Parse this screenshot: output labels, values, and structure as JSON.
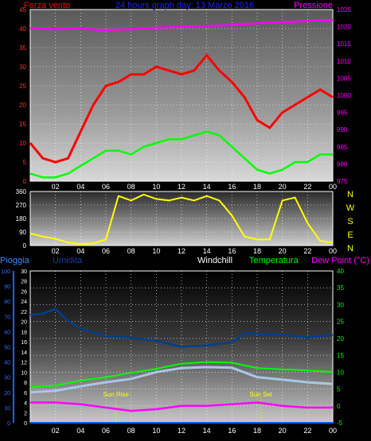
{
  "chart_data": [
    {
      "type": "line",
      "title": "24 hours graph day: 13 Marzo 2016",
      "left_label": "Forza vento",
      "right_label": "Pressione",
      "x_ticks": [
        "02",
        "04",
        "06",
        "08",
        "10",
        "12",
        "14",
        "16",
        "18",
        "20",
        "22",
        "00"
      ],
      "ylim_left": [
        0,
        45
      ],
      "y_ticks_left": [
        "0",
        "5",
        "10",
        "15",
        "20",
        "25",
        "30",
        "35",
        "40",
        "45"
      ],
      "ylim_right": [
        975,
        1025
      ],
      "y_ticks_right": [
        "975",
        "980",
        "985",
        "990",
        "995",
        "1000",
        "1005",
        "1010",
        "1015",
        "1020",
        "1025"
      ],
      "grid": true,
      "series": [
        {
          "name": "Forza vento",
          "color": "#ff0000",
          "x": [
            0,
            1,
            2,
            3,
            4,
            5,
            6,
            7,
            8,
            9,
            10,
            11,
            12,
            13,
            14,
            15,
            16,
            17,
            18,
            19,
            20,
            21,
            22,
            23,
            24
          ],
          "values": [
            10,
            6,
            5,
            6,
            13,
            20,
            25,
            26,
            28,
            28,
            30,
            29,
            28,
            29,
            33,
            29,
            26,
            22,
            16,
            14,
            18,
            20,
            22,
            24,
            22
          ]
        },
        {
          "name": "Raffica",
          "color": "#00ff00",
          "x": [
            0,
            1,
            2,
            3,
            4,
            5,
            6,
            7,
            8,
            9,
            10,
            11,
            12,
            13,
            14,
            15,
            16,
            17,
            18,
            19,
            20,
            21,
            22,
            23,
            24
          ],
          "values": [
            2,
            1,
            1,
            2,
            4,
            6,
            8,
            8,
            7,
            9,
            10,
            11,
            11,
            12,
            13,
            12,
            9,
            6,
            3,
            2,
            3,
            5,
            5,
            7,
            7
          ]
        },
        {
          "name": "Pressione",
          "color": "#ff00ff",
          "x": [
            0,
            2,
            4,
            6,
            8,
            10,
            12,
            14,
            16,
            18,
            20,
            22,
            24
          ],
          "values": [
            1019.5,
            1019.3,
            1019.5,
            1019.0,
            1019.3,
            1019.7,
            1020.0,
            1020.2,
            1020.5,
            1021.0,
            1021.3,
            1021.7,
            1022.0
          ]
        }
      ]
    },
    {
      "type": "line",
      "right_labels": [
        "N",
        "W",
        "S",
        "E",
        "N"
      ],
      "x_ticks": [
        "02",
        "04",
        "06",
        "08",
        "10",
        "12",
        "14",
        "16",
        "18",
        "20",
        "22",
        "00"
      ],
      "ylim": [
        0,
        360
      ],
      "y_ticks": [
        "0",
        "90",
        "180",
        "270",
        "360"
      ],
      "series": [
        {
          "name": "Direzione",
          "color": "#ffff00",
          "x": [
            0,
            1,
            2,
            3,
            4,
            5,
            6,
            7,
            8,
            9,
            10,
            11,
            12,
            13,
            14,
            15,
            16,
            17,
            18,
            19,
            20,
            21,
            22,
            23,
            24
          ],
          "values": [
            80,
            60,
            45,
            20,
            10,
            15,
            40,
            330,
            300,
            340,
            310,
            300,
            320,
            300,
            330,
            300,
            200,
            60,
            40,
            40,
            300,
            320,
            150,
            30,
            20
          ]
        }
      ]
    },
    {
      "type": "line",
      "labels": {
        "pioggia": "Pioggia",
        "umidita": "Umidita",
        "windchill": "Windchill",
        "temperatura": "Temperatura",
        "dew": "Dew Point (°C)"
      },
      "annotations": [
        {
          "text": "Sun Rise",
          "x": 6.8
        },
        {
          "text": "Sun Set",
          "x": 18.3
        }
      ],
      "x_ticks": [
        "02",
        "04",
        "06",
        "08",
        "10",
        "12",
        "14",
        "16",
        "18",
        "20",
        "22",
        "00"
      ],
      "ylim_left1": [
        0,
        100
      ],
      "y_ticks_left1": [
        "0",
        "10",
        "20",
        "30",
        "40",
        "50",
        "60",
        "70",
        "80",
        "90",
        "100"
      ],
      "ylim_left2": [
        0,
        30
      ],
      "y_ticks_left2": [
        "0",
        "2",
        "4",
        "6",
        "8",
        "10",
        "12",
        "14",
        "16",
        "18",
        "20",
        "22",
        "24",
        "26",
        "28",
        "30"
      ],
      "ylim_right": [
        -5,
        40
      ],
      "y_ticks_right": [
        "-5",
        "0",
        "5",
        "10",
        "15",
        "20",
        "25",
        "30",
        "35",
        "40"
      ],
      "grid": true,
      "series": [
        {
          "name": "Umidita",
          "color": "#003f8f",
          "x": [
            0,
            1,
            2,
            3,
            4,
            6,
            8,
            10,
            12,
            14,
            16,
            17,
            20,
            22,
            24
          ],
          "values": [
            71,
            72,
            75,
            67,
            62,
            57,
            56,
            54,
            50,
            51,
            53,
            59,
            58,
            56,
            58
          ]
        },
        {
          "name": "Windchill",
          "color": "#a8c8e8",
          "x": [
            0,
            2,
            4,
            6,
            8,
            10,
            12,
            14,
            16,
            18,
            20,
            22,
            24
          ],
          "values": [
            4.0,
            4.5,
            5.8,
            7.0,
            8.0,
            10.0,
            11.2,
            11.5,
            11.3,
            8.5,
            7.8,
            7.0,
            6.5
          ]
        },
        {
          "name": "Temperatura",
          "color": "#00ff00",
          "x": [
            0,
            2,
            4,
            6,
            8,
            10,
            12,
            14,
            16,
            18,
            20,
            22,
            24
          ],
          "values": [
            5.5,
            6.0,
            7.5,
            8.5,
            9.8,
            11.0,
            12.5,
            13.0,
            12.8,
            11.2,
            10.8,
            10.5,
            10.0
          ]
        },
        {
          "name": "Dew Point (°C)",
          "color": "#ff00ff",
          "x": [
            0,
            2,
            4,
            6,
            8,
            10,
            12,
            14,
            16,
            18,
            20,
            22,
            24
          ],
          "values": [
            1.0,
            1.0,
            0.5,
            -0.5,
            -1.5,
            -1.0,
            0.0,
            0.0,
            0.5,
            1.0,
            0.0,
            -0.5,
            -0.5
          ]
        },
        {
          "name": "Pioggia",
          "color": "#0060ff",
          "x": [
            0,
            24
          ],
          "values": [
            0,
            0
          ]
        }
      ]
    }
  ]
}
